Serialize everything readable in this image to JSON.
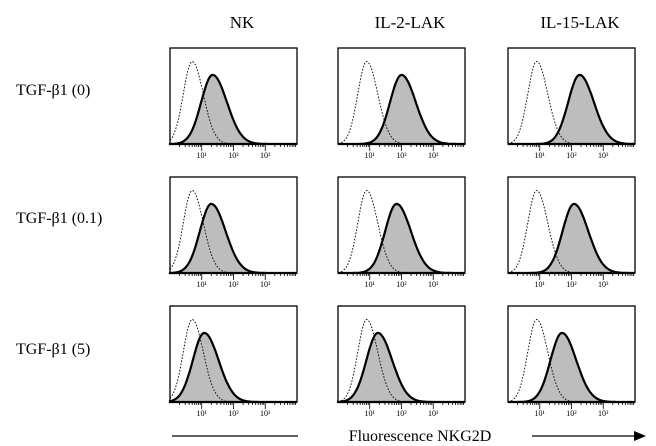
{
  "chart_data": {
    "type": "histogram-grid",
    "columns": [
      "NK",
      "IL-2-LAK",
      "IL-15-LAK"
    ],
    "rows": [
      "TGF-β1 (0)",
      "TGF-β1 (0.1)",
      "TGF-β1 (5)"
    ],
    "x_axis_label": "Fluorescence NKG2D",
    "x_scale": "log",
    "x_tick_labels": [
      "10¹",
      "10²",
      "10³"
    ],
    "x_tick_values": [
      10,
      100,
      1000
    ],
    "x_range": [
      1,
      10000
    ],
    "series_styles": {
      "control": "dotted outline, unfilled",
      "stained": "bold outline, gray fill"
    },
    "panels": [
      {
        "row": 0,
        "col": 0,
        "control_peak": 5,
        "stained_peak": 22
      },
      {
        "row": 0,
        "col": 1,
        "control_peak": 8,
        "stained_peak": 100
      },
      {
        "row": 0,
        "col": 2,
        "control_peak": 8,
        "stained_peak": 180
      },
      {
        "row": 1,
        "col": 0,
        "control_peak": 5,
        "stained_peak": 20
      },
      {
        "row": 1,
        "col": 1,
        "control_peak": 8,
        "stained_peak": 70
      },
      {
        "row": 1,
        "col": 2,
        "control_peak": 8,
        "stained_peak": 120
      },
      {
        "row": 2,
        "col": 0,
        "control_peak": 5,
        "stained_peak": 12
      },
      {
        "row": 2,
        "col": 1,
        "control_peak": 8,
        "stained_peak": 18
      },
      {
        "row": 2,
        "col": 2,
        "control_peak": 8,
        "stained_peak": 50
      }
    ]
  },
  "colors": {
    "fill": "#bdbdbd",
    "line": "#000000"
  }
}
